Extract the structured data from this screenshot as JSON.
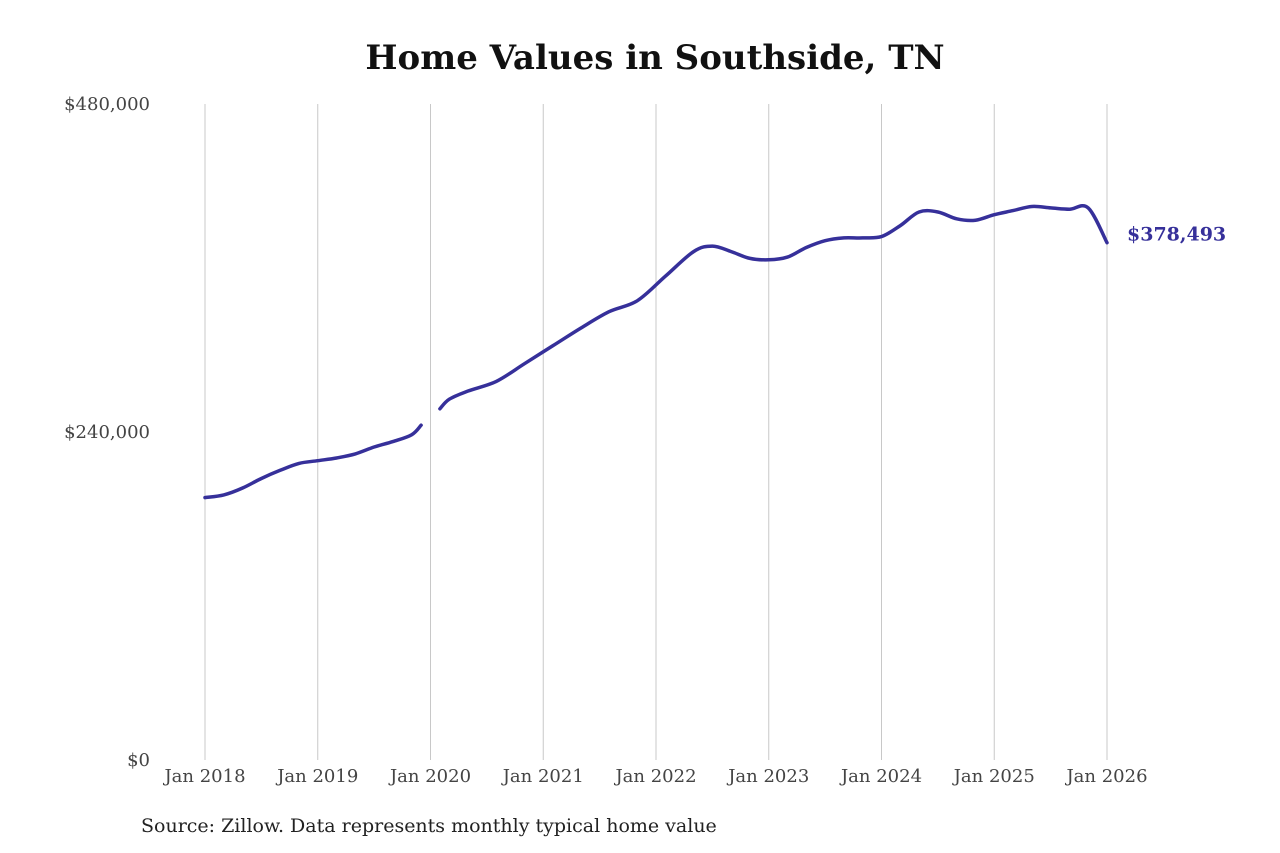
{
  "colors": {
    "line": "#36309a",
    "grid": "#c8c8c8",
    "text": "#444444"
  },
  "chart_data": {
    "type": "line",
    "title": "Home Values in Southside, TN",
    "source": "Source: Zillow. Data represents monthly typical home value",
    "xlabel": "",
    "ylabel": "",
    "ylim": [
      0,
      480000
    ],
    "y_ticks": [
      {
        "value": 0,
        "label": "$0"
      },
      {
        "value": 240000,
        "label": "$240,000"
      },
      {
        "value": 480000,
        "label": "$480,000"
      }
    ],
    "x_ticks": [
      {
        "year": 2018,
        "label": "Jan 2018"
      },
      {
        "year": 2019,
        "label": "Jan 2019"
      },
      {
        "year": 2020,
        "label": "Jan 2020"
      },
      {
        "year": 2021,
        "label": "Jan 2021"
      },
      {
        "year": 2022,
        "label": "Jan 2022"
      },
      {
        "year": 2023,
        "label": "Jan 2023"
      },
      {
        "year": 2024,
        "label": "Jan 2024"
      },
      {
        "year": 2025,
        "label": "Jan 2025"
      },
      {
        "year": 2026,
        "label": "Jan 2026"
      }
    ],
    "grid": "vertical",
    "end_label": "$378,493",
    "series": [
      {
        "segments": [
          [
            [
              "2018-01",
              192000
            ],
            [
              "2018-03",
              194000
            ],
            [
              "2018-05",
              199000
            ],
            [
              "2018-07",
              206000
            ],
            [
              "2018-09",
              212000
            ],
            [
              "2018-11",
              217000
            ],
            [
              "2019-01",
              219000
            ],
            [
              "2019-03",
              221000
            ],
            [
              "2019-05",
              224000
            ],
            [
              "2019-07",
              229000
            ],
            [
              "2019-09",
              233000
            ],
            [
              "2019-11",
              238000
            ],
            [
              "2019-12",
              245000
            ]
          ],
          [
            [
              "2020-02",
              257000
            ],
            [
              "2020-03",
              264000
            ],
            [
              "2020-05",
              270000
            ],
            [
              "2020-08",
              277000
            ],
            [
              "2020-11",
              290000
            ],
            [
              "2021-02",
              303000
            ],
            [
              "2021-05",
              316000
            ],
            [
              "2021-08",
              328000
            ],
            [
              "2021-11",
              336000
            ],
            [
              "2022-02",
              354000
            ],
            [
              "2022-05",
              372000
            ],
            [
              "2022-07",
              376000
            ],
            [
              "2022-09",
              372000
            ],
            [
              "2022-11",
              367000
            ],
            [
              "2023-01",
              366000
            ],
            [
              "2023-03",
              368000
            ],
            [
              "2023-05",
              375000
            ],
            [
              "2023-07",
              380000
            ],
            [
              "2023-09",
              382000
            ],
            [
              "2023-11",
              382000
            ],
            [
              "2024-01",
              383000
            ],
            [
              "2024-03",
              391000
            ],
            [
              "2024-05",
              401000
            ],
            [
              "2024-07",
              401000
            ],
            [
              "2024-09",
              396000
            ],
            [
              "2024-11",
              395000
            ],
            [
              "2025-01",
              399000
            ],
            [
              "2025-03",
              402000
            ],
            [
              "2025-05",
              405000
            ],
            [
              "2025-07",
              404000
            ],
            [
              "2025-09",
              403000
            ],
            [
              "2025-11",
              404000
            ],
            [
              "2026-01",
              378493
            ]
          ]
        ]
      }
    ]
  }
}
